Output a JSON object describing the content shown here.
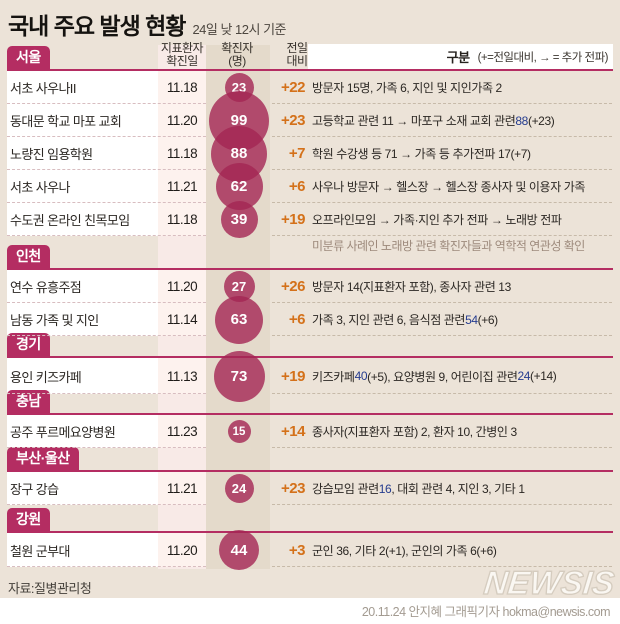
{
  "title": "국내 주요 발생 현황",
  "subtitle": "24일 낮 12시 기준",
  "columns": {
    "date_l1": "지표환자",
    "date_l2": "확진일",
    "cases_l1": "확진자",
    "cases_l2": "(명)",
    "delta_l1": "전일",
    "delta_l2": "대비",
    "category": "구분",
    "category_note": "(+=전일대비, → = 추가 전파)"
  },
  "colors": {
    "accent": "#b42d62",
    "circle_fill": "rgba(164,38,84,0.8)",
    "delta_orange": "#d4711a",
    "highlight_blue": "#253c8f",
    "background": "#ece3d8",
    "date_band": "#f8eae7",
    "cases_band": "#e4dacb"
  },
  "chart_data": {
    "type": "bar",
    "title": "국내 주요 발생 현황 (24일 낮 12시 기준)",
    "categories": [
      "서초 사우나II",
      "동대문 학교 마포 교회",
      "노량진 임용학원",
      "서초 사우나",
      "수도권 온라인 친목모임",
      "연수 유흥주점",
      "남동 가족 및 지인",
      "용인 키즈카페",
      "공주 푸르메요양병원",
      "장구 강습",
      "철원 군부대"
    ],
    "values": [
      23,
      99,
      88,
      62,
      39,
      27,
      63,
      73,
      15,
      24,
      44
    ],
    "deltas": [
      22,
      23,
      7,
      6,
      19,
      26,
      6,
      19,
      14,
      23,
      3
    ],
    "regions": [
      "서울",
      "서울",
      "서울",
      "서울",
      "서울",
      "인천",
      "인천",
      "경기",
      "충남",
      "부산·울산",
      "강원"
    ],
    "xlabel": "",
    "ylabel": "확진자(명)"
  },
  "sections": [
    {
      "label": "서울",
      "rows": [
        {
          "name": "서초 사우나II",
          "date": "11.18",
          "cases": 23,
          "delta": "+22",
          "desc": [
            {
              "t": "방문자 15명, 가족 6, 지인 및 지인가족 2"
            }
          ]
        },
        {
          "name": "동대문 학교 마포 교회",
          "date": "11.20",
          "cases": 99,
          "delta": "+23",
          "desc": [
            {
              "t": "고등학교 관련 11 →  마포구 소재 교회 관련 "
            },
            {
              "t": "88",
              "blue": true
            },
            {
              "t": "(+23)"
            }
          ]
        },
        {
          "name": "노량진 임용학원",
          "date": "11.18",
          "cases": 88,
          "delta": "+7",
          "desc": [
            {
              "t": "학원 수강생 등 71 →  가족 등 추가전파 17(+7)"
            }
          ]
        },
        {
          "name": "서초 사우나",
          "date": "11.21",
          "cases": 62,
          "delta": "+6",
          "desc": [
            {
              "t": "사우나 방문자 → 헬스장 → 헬스장 종사자 및 이용자 가족"
            }
          ]
        },
        {
          "name": "수도권 온라인 친목모임",
          "date": "11.18",
          "cases": 39,
          "delta": "+19",
          "desc": [
            {
              "t": "오프라인모임 → 가족·지인 추가 전파 → 노래방 전파"
            }
          ],
          "note": "미분류 사례인 노래방 관련 확진자들과 역학적 연관성 확인"
        }
      ]
    },
    {
      "label": "인천",
      "rows": [
        {
          "name": "연수 유흥주점",
          "date": "11.20",
          "cases": 27,
          "delta": "+26",
          "desc": [
            {
              "t": "방문자 14(지표환자 포함), 종사자 관련 13"
            }
          ]
        },
        {
          "name": "남동 가족 및 지인",
          "date": "11.14",
          "cases": 63,
          "delta": "+6",
          "desc": [
            {
              "t": "가족 3, 지인 관련 6, 음식점 관련 "
            },
            {
              "t": "54",
              "blue": true
            },
            {
              "t": "(+6)"
            }
          ]
        }
      ]
    },
    {
      "label": "경기",
      "rows": [
        {
          "name": "용인 키즈카페",
          "date": "11.13",
          "cases": 73,
          "delta": "+19",
          "desc": [
            {
              "t": "키즈카페 "
            },
            {
              "t": "40",
              "blue": true
            },
            {
              "t": "(+5), 요양병원 9, 어린이집 관련 "
            },
            {
              "t": "24",
              "blue": true
            },
            {
              "t": "(+14)"
            }
          ]
        }
      ]
    },
    {
      "label": "충남",
      "rows": [
        {
          "name": "공주 푸르메요양병원",
          "date": "11.23",
          "cases": 15,
          "delta": "+14",
          "desc": [
            {
              "t": "종사자(지표환자 포함) 2, 환자 10, 간병인 3"
            }
          ]
        }
      ]
    },
    {
      "label": "부산·울산",
      "rows": [
        {
          "name": "장구 강습",
          "date": "11.21",
          "cases": 24,
          "delta": "+23",
          "desc": [
            {
              "t": "강습모임 관련 "
            },
            {
              "t": "16",
              "blue": true
            },
            {
              "t": ", 대회 관련 4, 지인 3, 기타 1"
            }
          ]
        }
      ]
    },
    {
      "label": "강원",
      "rows": [
        {
          "name": "철원 군부대",
          "date": "11.20",
          "cases": 44,
          "delta": "+3",
          "desc": [
            {
              "t": "군인 36, 기타 2(+1), 군인의 가족 6(+6)"
            }
          ]
        }
      ]
    }
  ],
  "footer": {
    "source": "자료:질병관리청",
    "watermark": "NEWSIS",
    "credit": "20.11.24 안지혜 그래픽기자 hokma@newsis.com"
  }
}
